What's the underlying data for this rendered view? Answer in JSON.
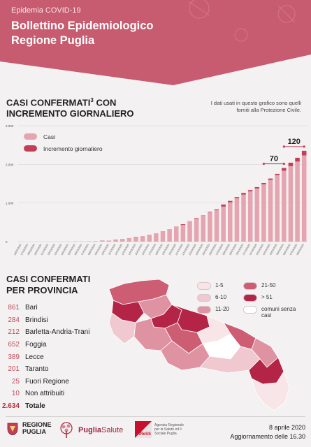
{
  "header": {
    "kicker": "Epidemia COVID-19",
    "title_line1": "Bollettino Epidemiologico",
    "title_line2": "Regione Puglia",
    "color": "#c75b6f"
  },
  "section1": {
    "title_line1": "CASI CONFERMATI",
    "title_sup": "3",
    "title_line1_rest": " CON",
    "title_line2": "INCREMENTO GIORNALIERO",
    "note": "I dati usati in questo grafico sono quelli forniti alla Protezione Civile."
  },
  "chart_data": {
    "type": "bar",
    "stacked": true,
    "ylim": [
      0,
      3000
    ],
    "yticks": [
      "0",
      "1.000",
      "2.000",
      "3.000"
    ],
    "grid": true,
    "legend_placement": "top-left",
    "categories": [
      "26/02/2020",
      "27/02/2020",
      "28/02/2020",
      "29/02/2020",
      "01/03/2020",
      "02/03/2020",
      "03/03/2020",
      "04/03/2020",
      "05/03/2020",
      "06/03/2020",
      "07/03/2020",
      "08/03/2020",
      "09/03/2020",
      "10/03/2020",
      "11/03/2020",
      "12/03/2020",
      "13/03/2020",
      "14/03/2020",
      "15/03/2020",
      "16/03/2020",
      "17/03/2020",
      "18/03/2020",
      "19/03/2020",
      "20/03/2020",
      "21/03/2020",
      "22/03/2020",
      "23/03/2020",
      "24/03/2020",
      "25/03/2020",
      "26/03/2020",
      "27/03/2020",
      "28/03/2020",
      "29/03/2020",
      "30/03/2020",
      "31/03/2020",
      "01/04/2020",
      "02/04/2020",
      "03/04/2020",
      "04/04/2020",
      "05/04/2020",
      "06/04/2020",
      "07/04/2020",
      "08/04/2020"
    ],
    "series": [
      {
        "name": "Casi",
        "color": "#e4a5b0",
        "values": [
          0,
          0,
          1,
          1,
          2,
          2,
          3,
          4,
          5,
          6,
          7,
          12,
          26,
          29,
          43,
          68,
          93,
          118,
          143,
          174,
          216,
          265,
          318,
          386,
          432,
          525,
          603,
          682,
          765,
          814,
          907,
          1021,
          1127,
          1217,
          1303,
          1377,
          1484,
          1599,
          1723,
          1836,
          1954,
          2072,
          2232
        ]
      },
      {
        "name": "Incremento giornaliero",
        "color": "#c43e58",
        "values": [
          1,
          0,
          0,
          0,
          0,
          0,
          0,
          0,
          1,
          0,
          0,
          0,
          3,
          0,
          7,
          2,
          0,
          5,
          0,
          3,
          0,
          3,
          3,
          4,
          19,
          4,
          10,
          4,
          10,
          21,
          55,
          33,
          27,
          44,
          31,
          34,
          34,
          35,
          32,
          70,
          89,
          99,
          120
        ]
      }
    ],
    "annotations": [
      "70",
      "120"
    ],
    "date_label_color": "#555555"
  },
  "section2": {
    "title_line1": "CASI CONFERMATI",
    "title_line2": "PER PROVINCIA",
    "rows": [
      {
        "num": "861",
        "name": "Bari"
      },
      {
        "num": "284",
        "name": "Brindisi"
      },
      {
        "num": "212",
        "name": "Barletta-Andria-Trani"
      },
      {
        "num": "652",
        "name": "Foggia"
      },
      {
        "num": "389",
        "name": "Lecce"
      },
      {
        "num": "201",
        "name": "Taranto"
      },
      {
        "num": "25",
        "name": "Fuori Regione"
      },
      {
        "num": "10",
        "name": "Non attribuiti"
      }
    ],
    "total": {
      "num": "2.634",
      "name": "Totale"
    }
  },
  "map_legend": {
    "items": [
      {
        "label": "1-5",
        "color": "#f7e5e8"
      },
      {
        "label": "6-10",
        "color": "#f0c8cf"
      },
      {
        "label": "11-20",
        "color": "#df93a2"
      },
      {
        "label": "21-50",
        "color": "#cc5d73"
      },
      {
        "label": "> 51",
        "color": "#b32446"
      },
      {
        "label": "comuni senza casi",
        "color": "#ffffff"
      }
    ]
  },
  "footer": {
    "logo1_line1": "REGIONE",
    "logo1_line2": "PUGLIA",
    "logo2_a": "Puglia",
    "logo2_b": "Salute",
    "logo3_mark": "AReSS",
    "logo3_text": "Agenzia Regionale per la Salute ed il Sociale Puglia",
    "date": "8 aprile 2020",
    "update": "Aggiornamento delle 16.30"
  }
}
